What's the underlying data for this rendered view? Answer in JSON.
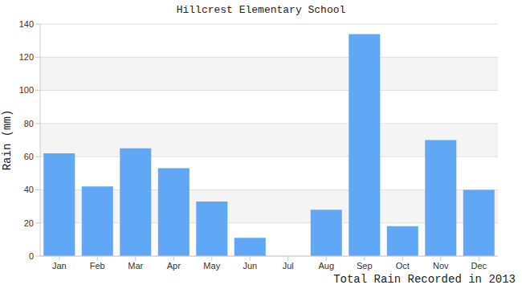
{
  "chart_data": {
    "type": "bar",
    "title": "Hillcrest Elementary School",
    "ylabel": "Rain (mm)",
    "xlabel": "Total Rain Recorded in 2013",
    "categories": [
      "Jan",
      "Feb",
      "Mar",
      "Apr",
      "May",
      "Jun",
      "Jul",
      "Aug",
      "Sep",
      "Oct",
      "Nov",
      "Dec"
    ],
    "values": [
      62,
      42,
      65,
      53,
      33,
      11,
      0,
      28,
      134,
      18,
      70,
      40
    ],
    "color": "#60a8f5",
    "ylim": [
      0,
      140
    ],
    "yticks": [
      0,
      20,
      40,
      60,
      80,
      100,
      120,
      140
    ],
    "grid": true
  }
}
